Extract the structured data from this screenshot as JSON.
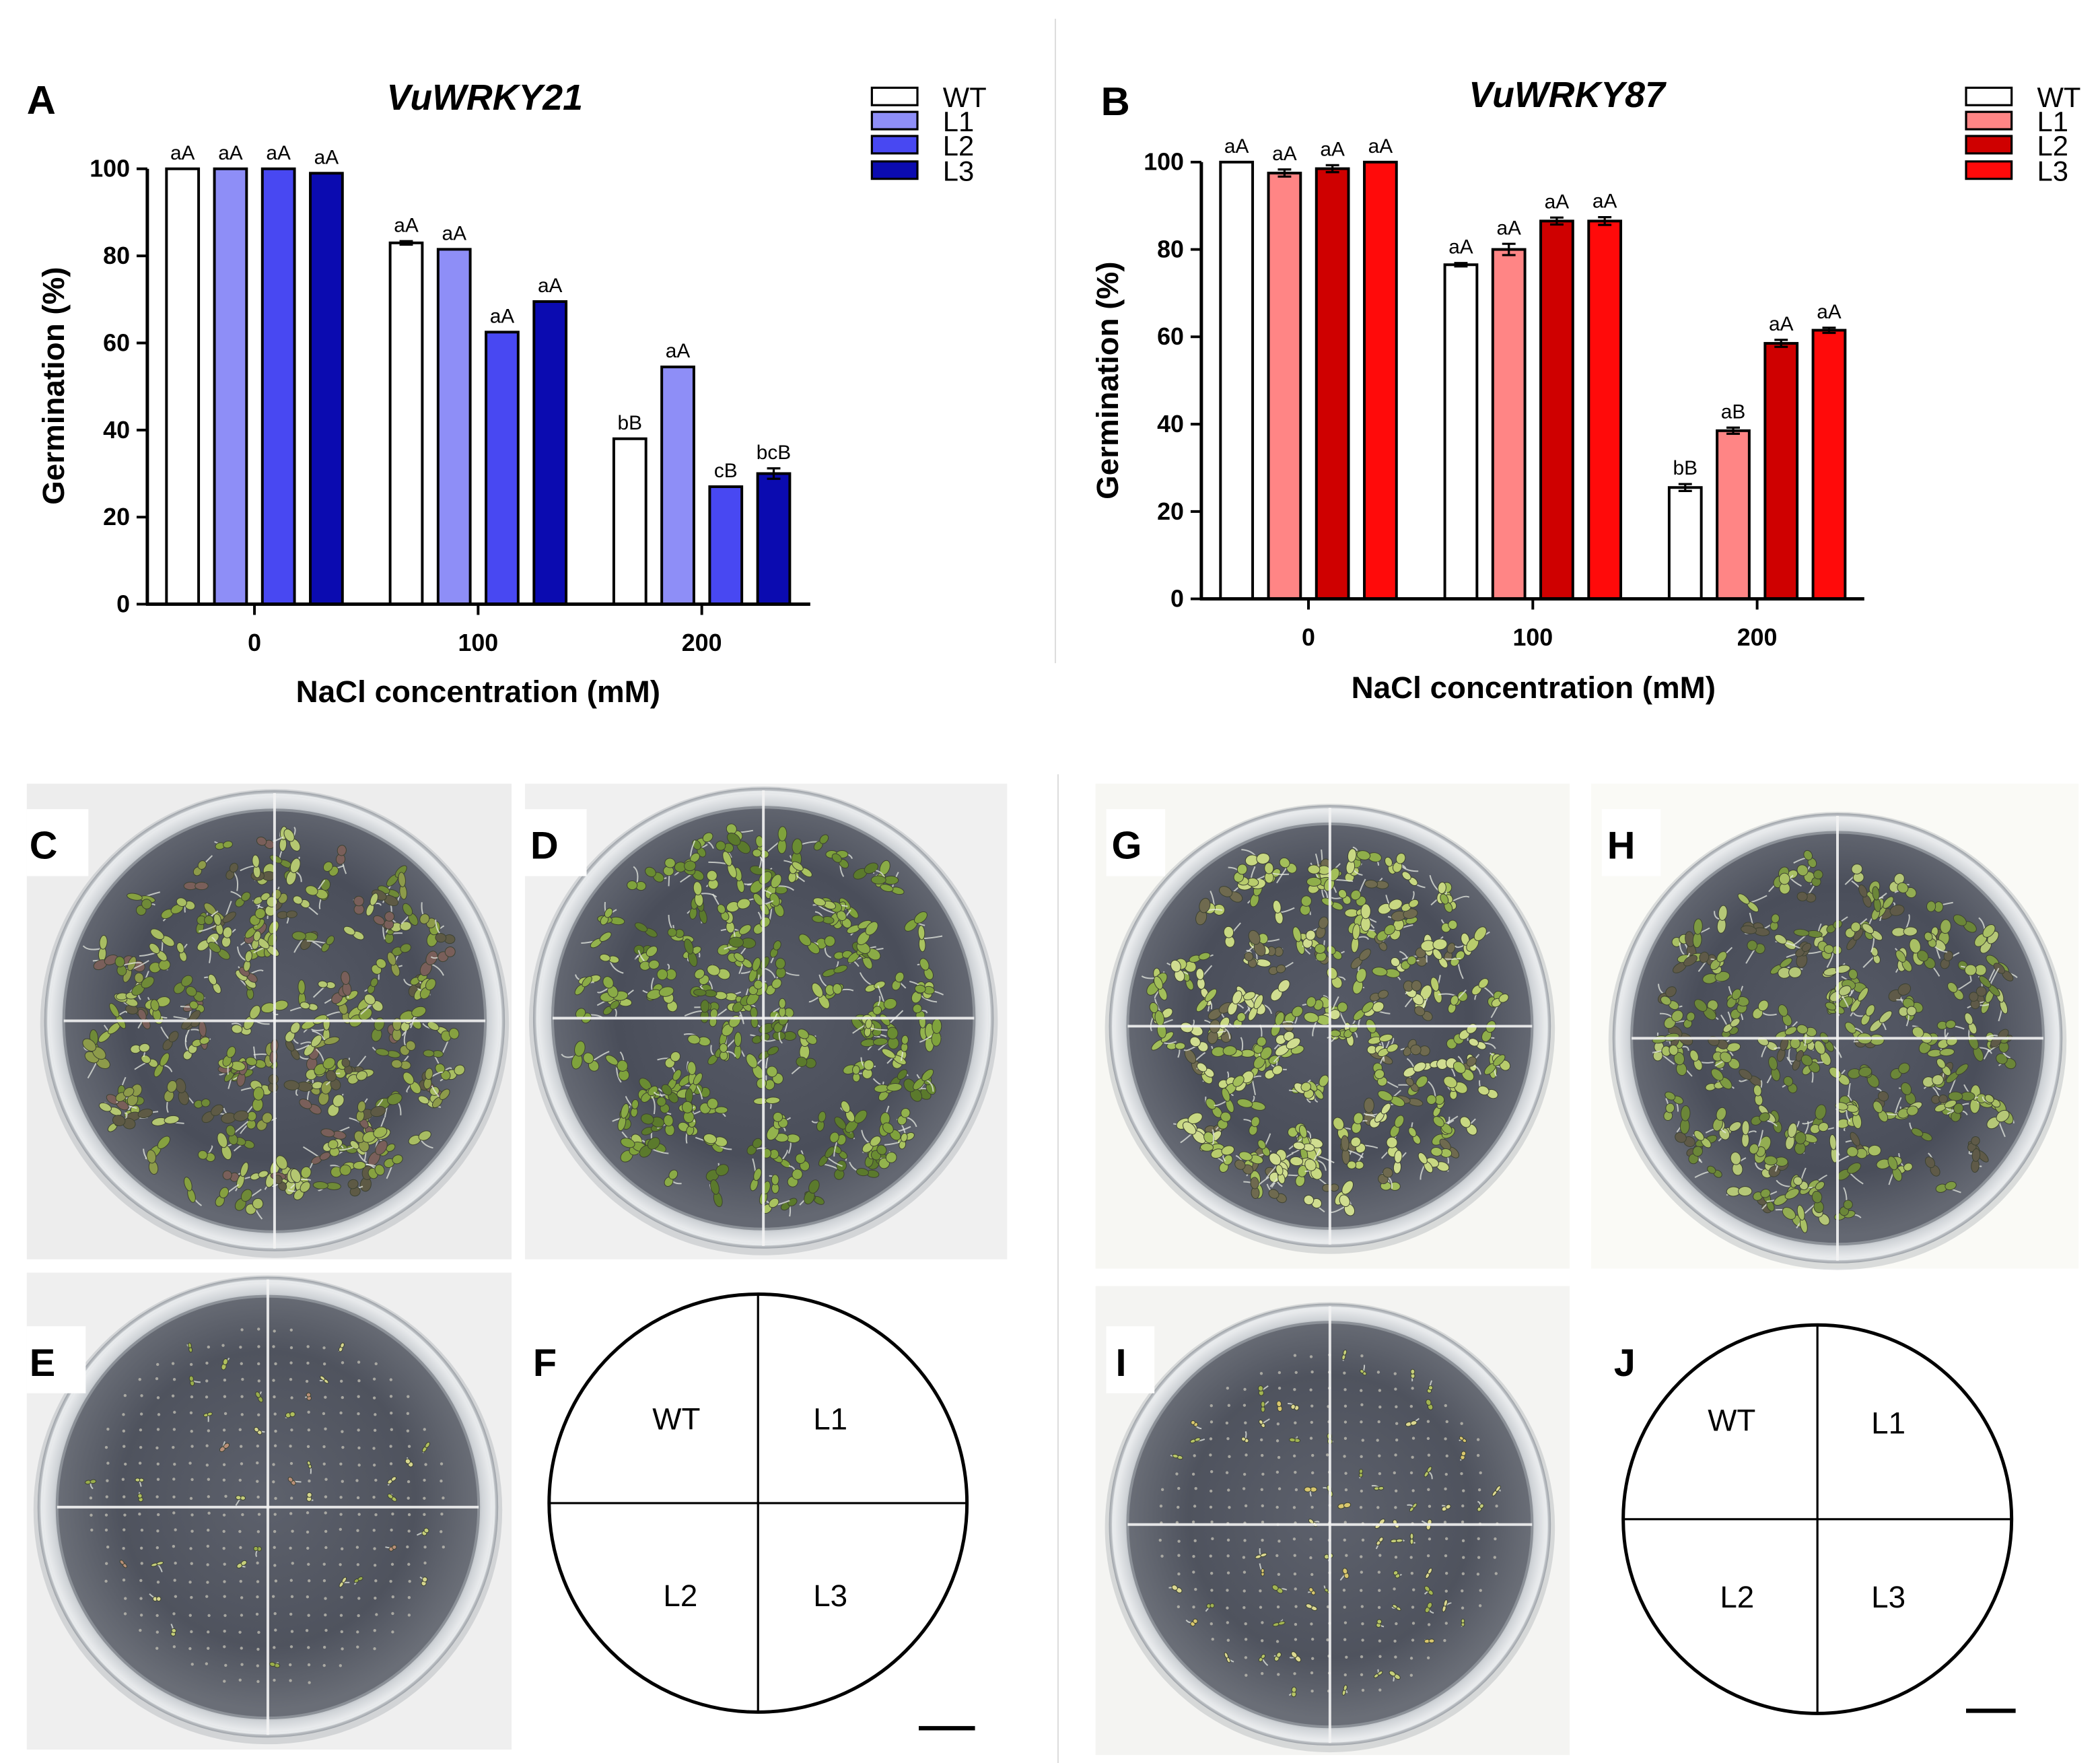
{
  "chart_data": [
    {
      "panel": "A",
      "type": "bar",
      "title": "VuWRKY21",
      "xlabel": "NaCl concentration (mM)",
      "ylabel": "Germination (%)",
      "categories": [
        "0",
        "100",
        "200"
      ],
      "ylim": [
        0,
        100
      ],
      "yticks": [
        0,
        20,
        40,
        60,
        80,
        100
      ],
      "legend_position": "top-right",
      "series": [
        {
          "name": "WT",
          "color": "#ffffff",
          "values": [
            100,
            83,
            38
          ],
          "errors": [
            0,
            0.4,
            0
          ],
          "labels": [
            "aA",
            "aA",
            "bB"
          ]
        },
        {
          "name": "L1",
          "color": "#8e8ef7",
          "values": [
            100,
            81.5,
            54.5
          ],
          "errors": [
            0,
            0,
            0
          ],
          "labels": [
            "aA",
            "aA",
            "aA"
          ]
        },
        {
          "name": "L2",
          "color": "#4848f2",
          "values": [
            100,
            62.5,
            27
          ],
          "errors": [
            0,
            0,
            0
          ],
          "labels": [
            "aA",
            "aA",
            "cB"
          ]
        },
        {
          "name": "L3",
          "color": "#0b0bb0",
          "values": [
            99,
            69.5,
            30
          ],
          "errors": [
            0,
            0,
            1.2
          ],
          "labels": [
            "aA",
            "aA",
            "bcB"
          ]
        }
      ]
    },
    {
      "panel": "B",
      "type": "bar",
      "title": "VuWRKY87",
      "xlabel": "NaCl concentration (mM)",
      "ylabel": "Germination (%)",
      "categories": [
        "0",
        "100",
        "200"
      ],
      "ylim": [
        0,
        100
      ],
      "yticks": [
        0,
        20,
        40,
        60,
        80,
        100
      ],
      "legend_position": "top-right",
      "series": [
        {
          "name": "WT",
          "color": "#ffffff",
          "values": [
            100,
            76.5,
            25.5
          ],
          "errors": [
            0,
            0.4,
            0.8
          ],
          "labels": [
            "aA",
            "aA",
            "bB"
          ]
        },
        {
          "name": "L1",
          "color": "#ff8585",
          "values": [
            97.5,
            80,
            38.5
          ],
          "errors": [
            0.8,
            1.3,
            0.7
          ],
          "labels": [
            "aA",
            "aA",
            "aB"
          ]
        },
        {
          "name": "L2",
          "color": "#cf0000",
          "values": [
            98.5,
            86.5,
            58.5
          ],
          "errors": [
            0.8,
            0.8,
            0.8
          ],
          "labels": [
            "aA",
            "aA",
            "aA"
          ]
        },
        {
          "name": "L3",
          "color": "#ff0a0a",
          "values": [
            100,
            86.5,
            61.5
          ],
          "errors": [
            0,
            0.9,
            0.6
          ],
          "labels": [
            "aA",
            "aA",
            "aA"
          ]
        }
      ]
    }
  ],
  "photo_panels": [
    {
      "letter": "C"
    },
    {
      "letter": "D"
    },
    {
      "letter": "E"
    },
    {
      "letter": "G"
    },
    {
      "letter": "H"
    },
    {
      "letter": "I"
    }
  ],
  "diagrams": [
    {
      "letter": "F",
      "quadrants": [
        "WT",
        "L1",
        "L2",
        "L3"
      ]
    },
    {
      "letter": "J",
      "quadrants": [
        "WT",
        "L1",
        "L2",
        "L3"
      ]
    }
  ]
}
